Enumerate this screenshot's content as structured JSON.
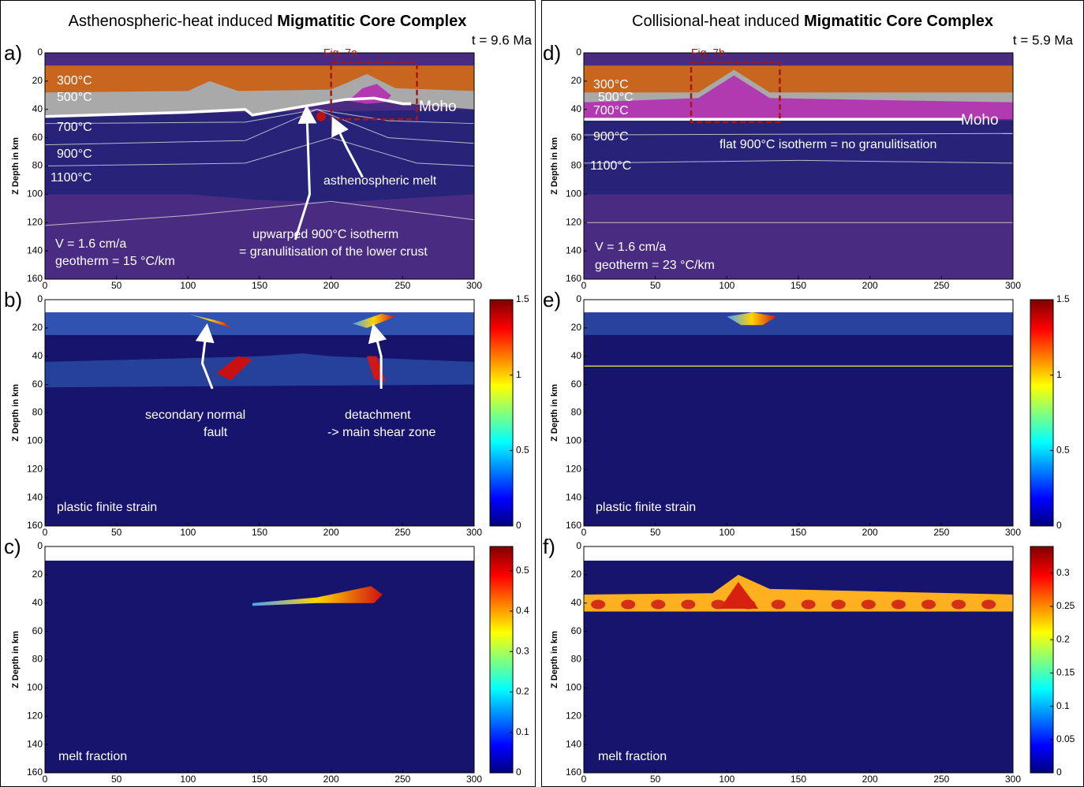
{
  "columns": [
    {
      "title_plain": "Asthenospheric-heat induced ",
      "title_bold": "Migmatitic Core Complex",
      "time": "t = 9.6 Ma",
      "panels": [
        {
          "label": "a)",
          "ylabel": "Z Depth in km",
          "xlim": [
            0,
            300
          ],
          "ylim": [
            0,
            160
          ],
          "xticks": [
            0,
            50,
            100,
            150,
            200,
            250,
            300
          ],
          "yticks": [
            0,
            20,
            40,
            60,
            80,
            100,
            120,
            140,
            160
          ],
          "annotations": [
            "300°C",
            "500°C",
            "700°C",
            "900°C",
            "1100°C",
            "Moho",
            "Fig. 7a",
            "asthenospheric melt",
            "upwarped 900°C isotherm",
            "= granulitisation of the lower crust",
            "V = 1.6 cm/a",
            "geotherm = 15 °C/km"
          ]
        },
        {
          "label": "b)",
          "ylabel": "Z Depth in km",
          "xlim": [
            0,
            300
          ],
          "ylim": [
            0,
            160
          ],
          "xticks": [
            0,
            50,
            100,
            150,
            200,
            250,
            300
          ],
          "yticks": [
            0,
            20,
            40,
            60,
            80,
            100,
            120,
            140,
            160
          ],
          "colorbar_lim": [
            0,
            1.5
          ],
          "colorbar_ticks": [
            0,
            0.5,
            1,
            1.5
          ],
          "annotations": [
            "secondary normal",
            "fault",
            "detachment",
            "-> main shear zone",
            "plastic finite strain"
          ]
        },
        {
          "label": "c)",
          "ylabel": "Z Depth in km",
          "xlim": [
            0,
            300
          ],
          "ylim": [
            0,
            160
          ],
          "xticks": [
            0,
            50,
            100,
            150,
            200,
            250,
            300
          ],
          "yticks": [
            0,
            20,
            40,
            60,
            80,
            100,
            120,
            140,
            160
          ],
          "colorbar_lim": [
            0,
            0.56
          ],
          "colorbar_ticks": [
            0,
            0.1,
            0.2,
            0.3,
            0.4,
            0.5
          ],
          "annotations": [
            "melt fraction"
          ]
        }
      ]
    },
    {
      "title_plain": "Collisional-heat induced ",
      "title_bold": "Migmatitic Core Complex",
      "time": "t = 5.9 Ma",
      "panels": [
        {
          "label": "d)",
          "ylabel": "Z Depth in km",
          "xlim": [
            0,
            300
          ],
          "ylim": [
            0,
            160
          ],
          "xticks": [
            0,
            50,
            100,
            150,
            200,
            250,
            300
          ],
          "yticks": [
            0,
            20,
            40,
            60,
            80,
            100,
            120,
            140,
            160
          ],
          "annotations": [
            "300°C",
            "500°C",
            "700°C",
            "Moho",
            "Fig. 7b",
            "900°C",
            "flat 900°C isotherm = no granulitisation",
            "1100°C",
            "V = 1.6 cm/a",
            "geotherm = 23 °C/km"
          ]
        },
        {
          "label": "e)",
          "ylabel": "Z Depth in km",
          "xlim": [
            0,
            300
          ],
          "ylim": [
            0,
            160
          ],
          "xticks": [
            0,
            50,
            100,
            150,
            200,
            250,
            300
          ],
          "yticks": [
            0,
            20,
            40,
            60,
            80,
            100,
            120,
            140,
            160
          ],
          "colorbar_lim": [
            0,
            1.5
          ],
          "colorbar_ticks": [
            0,
            0.5,
            1,
            1.5
          ],
          "annotations": [
            "plastic finite strain"
          ]
        },
        {
          "label": "f)",
          "ylabel": "Z Depth in km",
          "xlim": [
            0,
            300
          ],
          "ylim": [
            0,
            160
          ],
          "xticks": [
            0,
            50,
            100,
            150,
            200,
            250,
            300
          ],
          "yticks": [
            0,
            20,
            40,
            60,
            80,
            100,
            120,
            140,
            160
          ],
          "colorbar_lim": [
            0,
            0.34
          ],
          "colorbar_ticks": [
            0,
            0.05,
            0.1,
            0.15,
            0.2,
            0.25,
            0.3
          ],
          "annotations": [
            "melt fraction"
          ]
        }
      ]
    }
  ]
}
